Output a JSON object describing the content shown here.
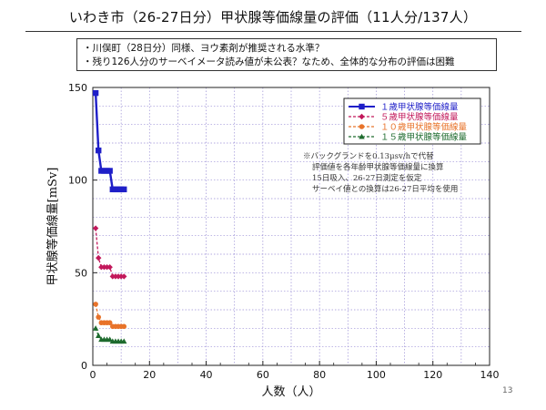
{
  "slide": {
    "title": "いわき市（26-27日分）甲状腺等価線量の評価（11人分/137人）",
    "notes": [
      "・川俣町（28日分）同様、ヨウ素剤が推奨される水準？",
      "・残り126人分のサーベイメータ読み値が未公表？なため、全体的な分布の評価は困難"
    ],
    "page_number": "13"
  },
  "chart_data": {
    "type": "line",
    "title": "",
    "xlabel": "人数（人）",
    "ylabel": "甲状腺等価線量[mSv]",
    "xlim": [
      0,
      140
    ],
    "ylim": [
      0,
      150
    ],
    "xticks": [
      0,
      20,
      40,
      60,
      80,
      100,
      120,
      140
    ],
    "yticks": [
      0,
      50,
      100,
      150
    ],
    "grid": true,
    "legend_position": "top-right",
    "series": [
      {
        "name": "１歳甲状腺等価線量",
        "color": "#1f1fc8",
        "marker": "square",
        "x": [
          1,
          2,
          3,
          4,
          5,
          6,
          7,
          8,
          9,
          10,
          11
        ],
        "y": [
          147,
          116,
          105,
          105,
          105,
          105,
          95,
          95,
          95,
          95,
          95
        ]
      },
      {
        "name": "５歳甲状腺等価線量",
        "color": "#c2185b",
        "marker": "diamond",
        "x": [
          1,
          2,
          3,
          4,
          5,
          6,
          7,
          8,
          9,
          10,
          11
        ],
        "y": [
          74,
          58,
          53,
          53,
          53,
          53,
          48,
          48,
          48,
          48,
          48
        ]
      },
      {
        "name": "１０歳甲状腺等価線量",
        "color": "#e8732a",
        "marker": "circle",
        "x": [
          1,
          2,
          3,
          4,
          5,
          6,
          7,
          8,
          9,
          10,
          11
        ],
        "y": [
          33,
          26,
          23,
          23,
          23,
          23,
          21,
          21,
          21,
          21,
          21
        ]
      },
      {
        "name": "１５歳甲状腺等価線量",
        "color": "#1e6b2e",
        "marker": "triangle",
        "x": [
          1,
          2,
          3,
          4,
          5,
          6,
          7,
          8,
          9,
          10,
          11
        ],
        "y": [
          20,
          16,
          14,
          14,
          14,
          14,
          13,
          13,
          13,
          13,
          13
        ]
      }
    ],
    "annotations": [
      "※バックグランドを0.13μsv/hで代替",
      "評価値を各年齢甲状腺等価線量に換算",
      "15日吸入、26-27日測定を仮定",
      "サーベイ値との換算は26-27日平均を使用"
    ]
  }
}
